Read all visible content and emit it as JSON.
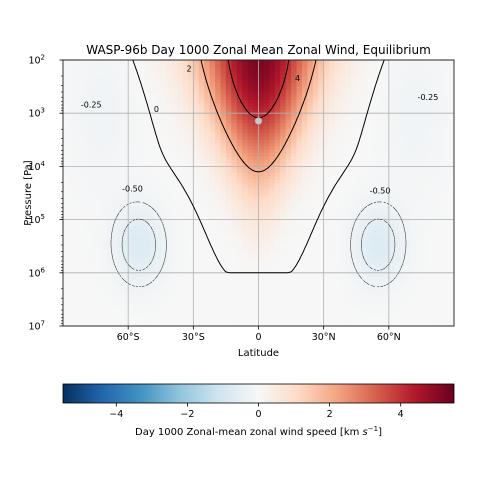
{
  "chart_data": {
    "type": "heatmap",
    "title": "WASP-96b Day 1000 Zonal Mean Zonal Wind, Equilibrium",
    "xlabel": "Latitude",
    "ylabel": "Pressure [Pa]",
    "x_ticks": [
      {
        "value": -60,
        "label": "60°S"
      },
      {
        "value": -30,
        "label": "30°S"
      },
      {
        "value": 0,
        "label": "0"
      },
      {
        "value": 30,
        "label": "30°N"
      },
      {
        "value": 60,
        "label": "60°N"
      }
    ],
    "y_scale": "log",
    "y_inverted": true,
    "y_ticks": [
      {
        "exp": 2,
        "label": "10"
      },
      {
        "exp": 3,
        "label": "10"
      },
      {
        "exp": 4,
        "label": "10"
      },
      {
        "exp": 5,
        "label": "10"
      },
      {
        "exp": 6,
        "label": "10"
      },
      {
        "exp": 7,
        "label": "10"
      }
    ],
    "xlim": [
      -90,
      90
    ],
    "ylim_pa": [
      10000000,
      100
    ],
    "grid": true,
    "colormap": "RdBu_r",
    "colorbar": {
      "label": "Day 1000 Zonal-mean zonal wind speed [km s$^{-1}$]",
      "label_text": "Day 1000 Zonal-mean zonal wind speed [km ",
      "label_unit": "s",
      "label_exp": "−1",
      "label_close": "]",
      "range": [
        -5.5,
        5.5
      ],
      "ticks": [
        {
          "value": -4,
          "label": "−4"
        },
        {
          "value": -2,
          "label": "−2"
        },
        {
          "value": 0,
          "label": "0"
        },
        {
          "value": 2,
          "label": "2"
        },
        {
          "value": 4,
          "label": "4"
        }
      ]
    },
    "field_summary": {
      "equatorial_jet_max_kms": 5.3,
      "jet_core_pressure_pa": 200,
      "jet_base_pressure_pa": 1000000,
      "midlatitude_min_kms": -0.75,
      "midlatitude_min_latitude": 55,
      "midlatitude_min_pressure_pa": 300000
    },
    "contour_labels": [
      {
        "text": "2",
        "lat": -32,
        "exp": 2.16
      },
      {
        "text": "4",
        "lat": 18,
        "exp": 2.34
      },
      {
        "text": "0",
        "lat": -47,
        "exp": 2.92
      },
      {
        "text": "-0.25",
        "lat": -77,
        "exp": 2.84
      },
      {
        "text": "-0.25",
        "lat": 78,
        "exp": 2.7
      },
      {
        "text": "-0.50",
        "lat": -58,
        "exp": 4.42
      },
      {
        "text": "-0.50",
        "lat": 56,
        "exp": 4.45
      }
    ],
    "marker": {
      "lat": 0,
      "pressure_pa": 1400
    }
  }
}
